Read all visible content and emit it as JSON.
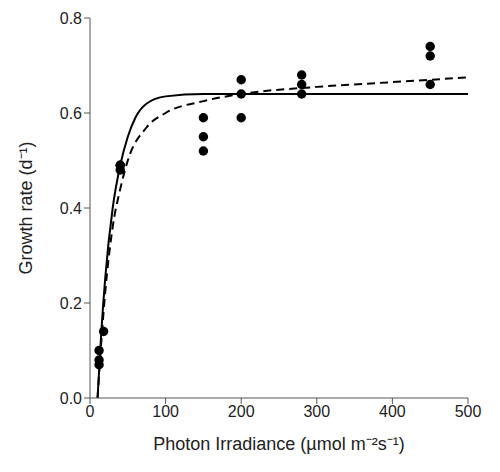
{
  "chart_data": {
    "type": "scatter",
    "xlabel": "Photon Irradiance (µmol m⁻²s⁻¹)",
    "ylabel": "Growth rate (d⁻¹)",
    "xlim": [
      0,
      500
    ],
    "xticks": [
      0,
      100,
      200,
      300,
      400,
      500
    ],
    "ylim": [
      0,
      0.8
    ],
    "yticks": [
      {
        "value": 0,
        "label": "0.0"
      },
      0.2,
      0.4,
      0.6,
      0.8
    ],
    "grid": false,
    "series": [
      {
        "type": "scatter",
        "marker": "circle",
        "color": "#000000",
        "x": [
          12,
          12,
          12,
          18,
          40,
          40,
          40,
          150,
          150,
          150,
          200,
          200,
          200,
          280,
          280,
          280,
          450,
          450,
          450
        ],
        "values": [
          0.07,
          0.08,
          0.1,
          0.14,
          0.48,
          0.49,
          0.49,
          0.52,
          0.55,
          0.59,
          0.59,
          0.64,
          0.67,
          0.64,
          0.66,
          0.68,
          0.66,
          0.72,
          0.74
        ]
      },
      {
        "type": "line",
        "line_style": "solid",
        "color": "#000000",
        "x": [
          10,
          15,
          20,
          30,
          40,
          50,
          60,
          75,
          100,
          150,
          200,
          500
        ],
        "values": [
          0,
          0.14,
          0.25,
          0.4,
          0.49,
          0.55,
          0.59,
          0.62,
          0.635,
          0.64,
          0.64,
          0.64
        ]
      },
      {
        "type": "line",
        "line_style": "dashed",
        "color": "#000000",
        "x": [
          10,
          15,
          20,
          30,
          40,
          50,
          75,
          100,
          150,
          200,
          300,
          400,
          500
        ],
        "values": [
          0,
          0.12,
          0.22,
          0.36,
          0.44,
          0.5,
          0.57,
          0.6,
          0.625,
          0.64,
          0.655,
          0.665,
          0.675
        ]
      }
    ]
  }
}
